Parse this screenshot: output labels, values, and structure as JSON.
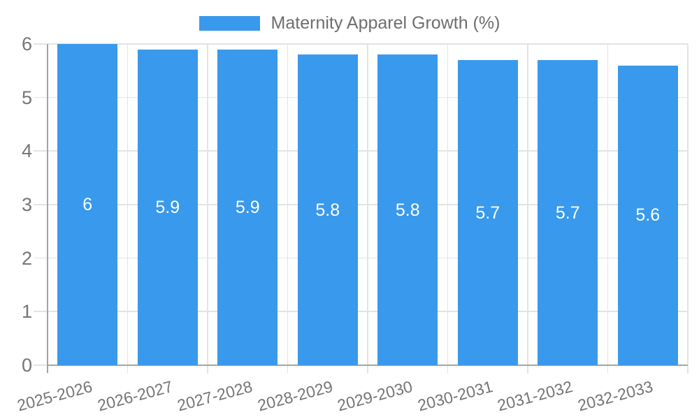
{
  "chart_data": {
    "type": "bar",
    "title": "Maternity Apparel Growth (%)",
    "categories": [
      "2025-2026",
      "2026-2027",
      "2027-2028",
      "2028-2029",
      "2029-2030",
      "2030-2031",
      "2031-2032",
      "2032-2033"
    ],
    "values": [
      6,
      5.9,
      5.9,
      5.8,
      5.8,
      5.7,
      5.7,
      5.6
    ],
    "value_labels": [
      "6",
      "5.9",
      "5.9",
      "5.8",
      "5.8",
      "5.7",
      "5.7",
      "5.6"
    ],
    "xlabel": "",
    "ylabel": "",
    "ylim": [
      0,
      6
    ],
    "yticks": [
      0,
      1,
      2,
      3,
      4,
      5,
      6
    ],
    "grid": true,
    "legend_position": "top",
    "colors": {
      "bar": "#3999EC",
      "value_label": "#FFFFFF",
      "grid": "#E3E3E3",
      "axis": "#A3A3A3",
      "tick_text": "#757575",
      "legend_text": "#6E6E6E"
    }
  }
}
